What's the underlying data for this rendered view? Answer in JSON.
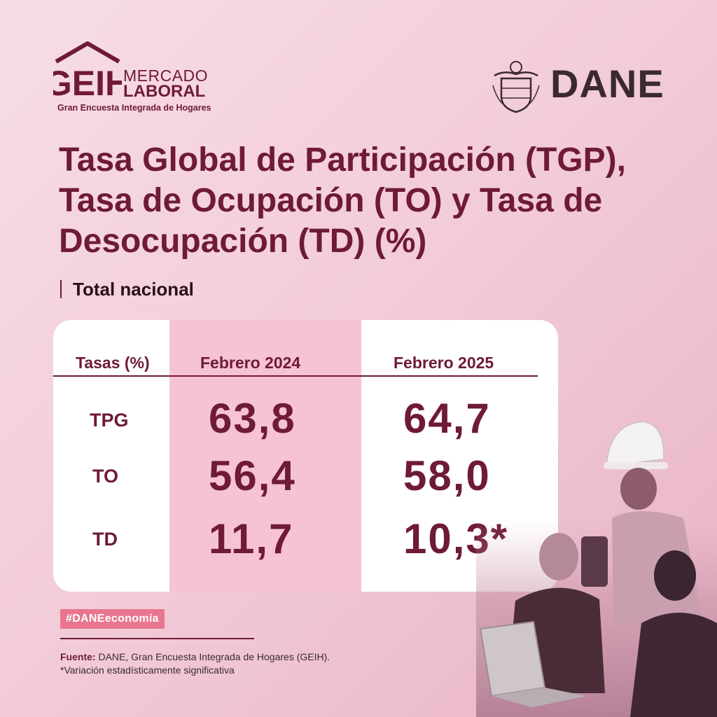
{
  "logos": {
    "geih_mark": "GEIH",
    "geih_line1": "MERCADO",
    "geih_line2": "LABORAL",
    "geih_subtitle": "Gran Encuesta Integrada de Hogares",
    "dane": "DANE"
  },
  "title": "Tasa Global de Participación (TGP), Tasa de Ocupación (TO) y Tasa de Desocupación (TD) (%)",
  "subtitle": "Total nacional",
  "table": {
    "headers": [
      "Tasas (%)",
      "Febrero 2024",
      "Febrero 2025"
    ],
    "rows": [
      {
        "label": "TPG",
        "v2024": "63,8",
        "v2025": "64,7"
      },
      {
        "label": "TO",
        "v2024": "56,4",
        "v2025": "58,0"
      },
      {
        "label": "TD",
        "v2024": "11,7",
        "v2025": "10,3*"
      }
    ]
  },
  "hashtag": "#DANEeconomía",
  "footer": {
    "source_label": "Fuente:",
    "source_text": " DANE, Gran Encuesta Integrada de Hogares (GEIH).",
    "note": "*Variación estadísticamente significativa"
  },
  "colors": {
    "primary": "#6e1a38",
    "highlight": "#f6c3d2",
    "hashtag_bg": "#e9758f",
    "background": "#f2cbd8"
  }
}
